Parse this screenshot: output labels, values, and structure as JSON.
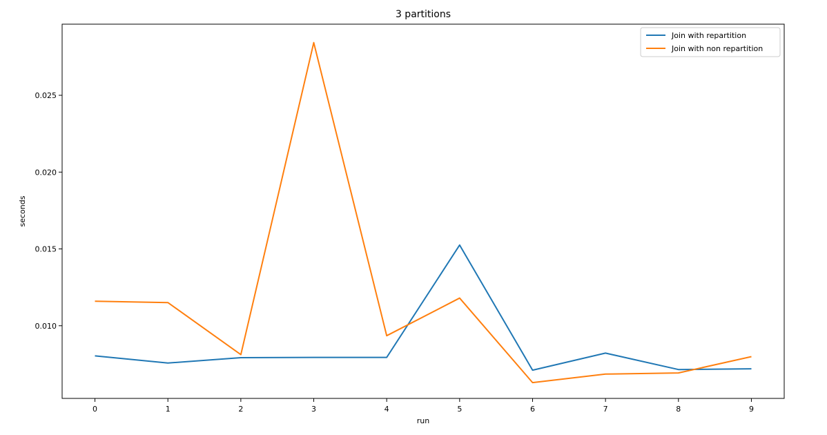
{
  "chart_data": {
    "type": "line",
    "title": "3 partitions",
    "xlabel": "run",
    "ylabel": "seconds",
    "x": [
      0,
      1,
      2,
      3,
      4,
      5,
      6,
      7,
      8,
      9
    ],
    "x_ticks": [
      "0",
      "1",
      "2",
      "3",
      "4",
      "5",
      "6",
      "7",
      "8",
      "9"
    ],
    "y_ticks": [
      "0.010",
      "0.015",
      "0.020",
      "0.025"
    ],
    "xlim": [
      -0.45,
      9.45
    ],
    "ylim": [
      0.00527,
      0.02963
    ],
    "grid": false,
    "legend_position": "top-right",
    "series": [
      {
        "name": "Join with repartition",
        "color": "#1f77b4",
        "values": [
          0.00804,
          0.00757,
          0.00792,
          0.00794,
          0.00794,
          0.01525,
          0.00711,
          0.00822,
          0.00715,
          0.0072
        ]
      },
      {
        "name": "Join with non repartition",
        "color": "#ff7f0e",
        "values": [
          0.0116,
          0.01151,
          0.00812,
          0.02843,
          0.00935,
          0.0118,
          0.0063,
          0.00685,
          0.00693,
          0.00799
        ]
      }
    ]
  }
}
